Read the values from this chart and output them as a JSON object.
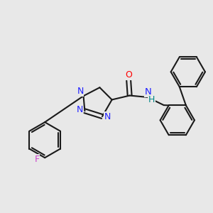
{
  "bg_color": "#e8e8e8",
  "bond_color": "#1a1a1a",
  "N_color": "#2020ff",
  "O_color": "#ff0000",
  "F_color": "#cc44cc",
  "NH_color": "#008888",
  "lw": 1.5,
  "dbo": 0.12,
  "fs": 9.0,
  "figsize": [
    3.0,
    3.0
  ],
  "dpi": 100,
  "xlim": [
    0,
    10
  ],
  "ylim": [
    0,
    10
  ]
}
